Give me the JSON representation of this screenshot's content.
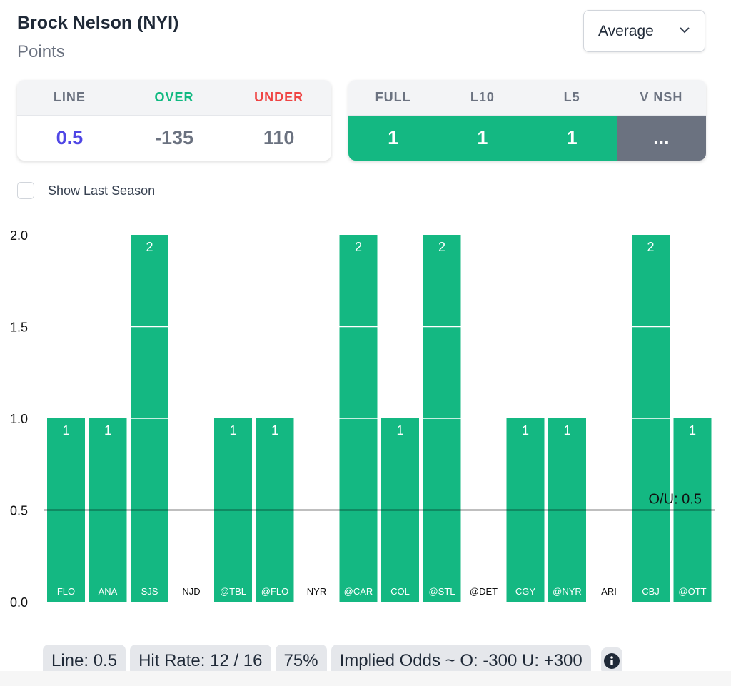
{
  "header": {
    "title": "Brock Nelson (NYI)",
    "subtitle": "Points",
    "dropdown": "Average"
  },
  "odds": {
    "headers": [
      "LINE",
      "OVER",
      "UNDER"
    ],
    "values": [
      "0.5",
      "-135",
      "110"
    ]
  },
  "splits": {
    "headers": [
      "FULL",
      "L10",
      "L5",
      "V NSH"
    ],
    "values": [
      "1",
      "1",
      "1",
      "..."
    ]
  },
  "colors": {
    "green": "#10b981",
    "red": "#ef4444",
    "blue": "#4f46e5",
    "gray": "#6b7280",
    "bar": "#14b882"
  },
  "checkbox": {
    "label": "Show Last Season",
    "checked": false
  },
  "chart_data": {
    "type": "bar",
    "categories": [
      "FLO",
      "ANA",
      "SJS",
      "NJD",
      "@TBL",
      "@FLO",
      "NYR",
      "@CAR",
      "COL",
      "@STL",
      "@DET",
      "CGY",
      "@NYR",
      "ARI",
      "CBJ",
      "@OTT"
    ],
    "values": [
      1,
      1,
      2,
      0,
      1,
      1,
      0,
      2,
      1,
      2,
      0,
      1,
      1,
      0,
      2,
      1
    ],
    "ylim": [
      0,
      2
    ],
    "yticks": [
      "0.0",
      "0.5",
      "1.0",
      "1.5",
      "2.0"
    ],
    "line": {
      "value": 0.5,
      "label": "O/U: 0.5"
    }
  },
  "footer": {
    "line": "Line: 0.5",
    "hit_rate": "Hit Rate: 12 / 16",
    "pct": "75%",
    "implied": "Implied Odds ~ O: -300 U: +300"
  }
}
